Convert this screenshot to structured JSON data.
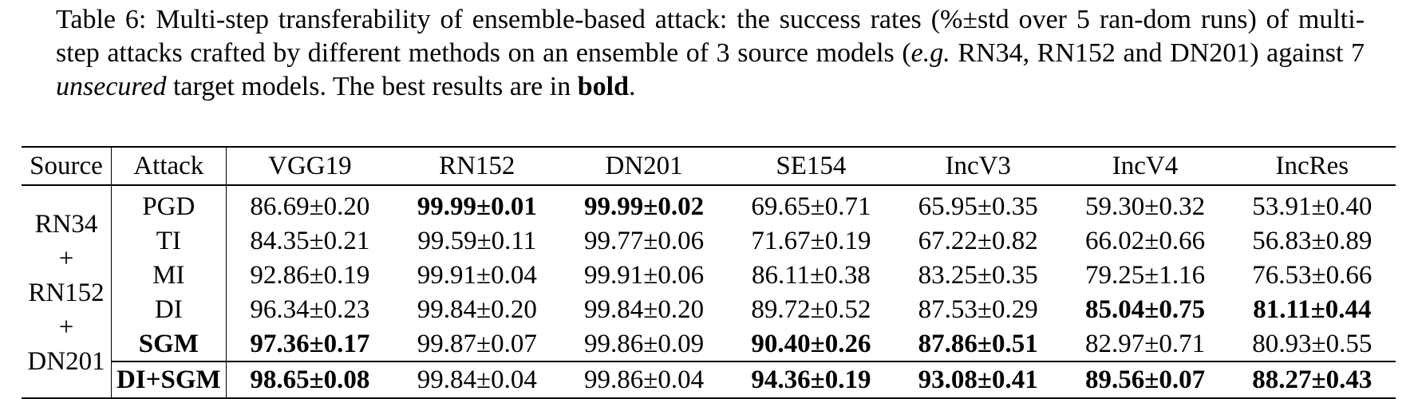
{
  "caption": {
    "label": "Table 6:",
    "part1": "Multi-step transferability of ensemble-based attack: the success rates (%±std over 5 ran-dom runs) of multi-step attacks crafted by different methods on an ensemble of 3 source models (",
    "eg": "e.g.",
    "part2": "RN34, RN152 and DN201) against 7",
    "unsecured": "unsecured",
    "part3": "target models. The best results are in",
    "bold_word": "bold",
    "end": "."
  },
  "table": {
    "headers": [
      "Source",
      "Attack",
      "VGG19",
      "RN152",
      "DN201",
      "SE154",
      "IncV3",
      "IncV4",
      "IncRes"
    ],
    "source_lines": [
      "RN34",
      "+",
      "RN152",
      "+",
      "DN201"
    ],
    "rows": [
      {
        "attack": "PGD",
        "attack_bold": false,
        "values": [
          "86.69±0.20",
          "99.99±0.01",
          "99.99±0.02",
          "69.65±0.71",
          "65.95±0.35",
          "59.30±0.32",
          "53.91±0.40"
        ],
        "bold": [
          false,
          true,
          true,
          false,
          false,
          false,
          false
        ]
      },
      {
        "attack": "TI",
        "attack_bold": false,
        "values": [
          "84.35±0.21",
          "99.59±0.11",
          "99.77±0.06",
          "71.67±0.19",
          "67.22±0.82",
          "66.02±0.66",
          "56.83±0.89"
        ],
        "bold": [
          false,
          false,
          false,
          false,
          false,
          false,
          false
        ]
      },
      {
        "attack": "MI",
        "attack_bold": false,
        "values": [
          "92.86±0.19",
          "99.91±0.04",
          "99.91±0.06",
          "86.11±0.38",
          "83.25±0.35",
          "79.25±1.16",
          "76.53±0.66"
        ],
        "bold": [
          false,
          false,
          false,
          false,
          false,
          false,
          false
        ]
      },
      {
        "attack": "DI",
        "attack_bold": false,
        "values": [
          "96.34±0.23",
          "99.84±0.20",
          "99.84±0.20",
          "89.72±0.52",
          "87.53±0.29",
          "85.04±0.75",
          "81.11±0.44"
        ],
        "bold": [
          false,
          false,
          false,
          false,
          false,
          true,
          true
        ]
      },
      {
        "attack": "SGM",
        "attack_bold": true,
        "values": [
          "97.36±0.17",
          "99.87±0.07",
          "99.86±0.09",
          "90.40±0.26",
          "87.86±0.51",
          "82.97±0.71",
          "80.93±0.55"
        ],
        "bold": [
          true,
          false,
          false,
          true,
          true,
          false,
          false
        ]
      },
      {
        "attack": "DI+SGM",
        "attack_bold": true,
        "values": [
          "98.65±0.08",
          "99.84±0.04",
          "99.86±0.04",
          "94.36±0.19",
          "93.08±0.41",
          "89.56±0.07",
          "88.27±0.43"
        ],
        "bold": [
          true,
          false,
          false,
          true,
          true,
          true,
          true
        ]
      }
    ]
  }
}
